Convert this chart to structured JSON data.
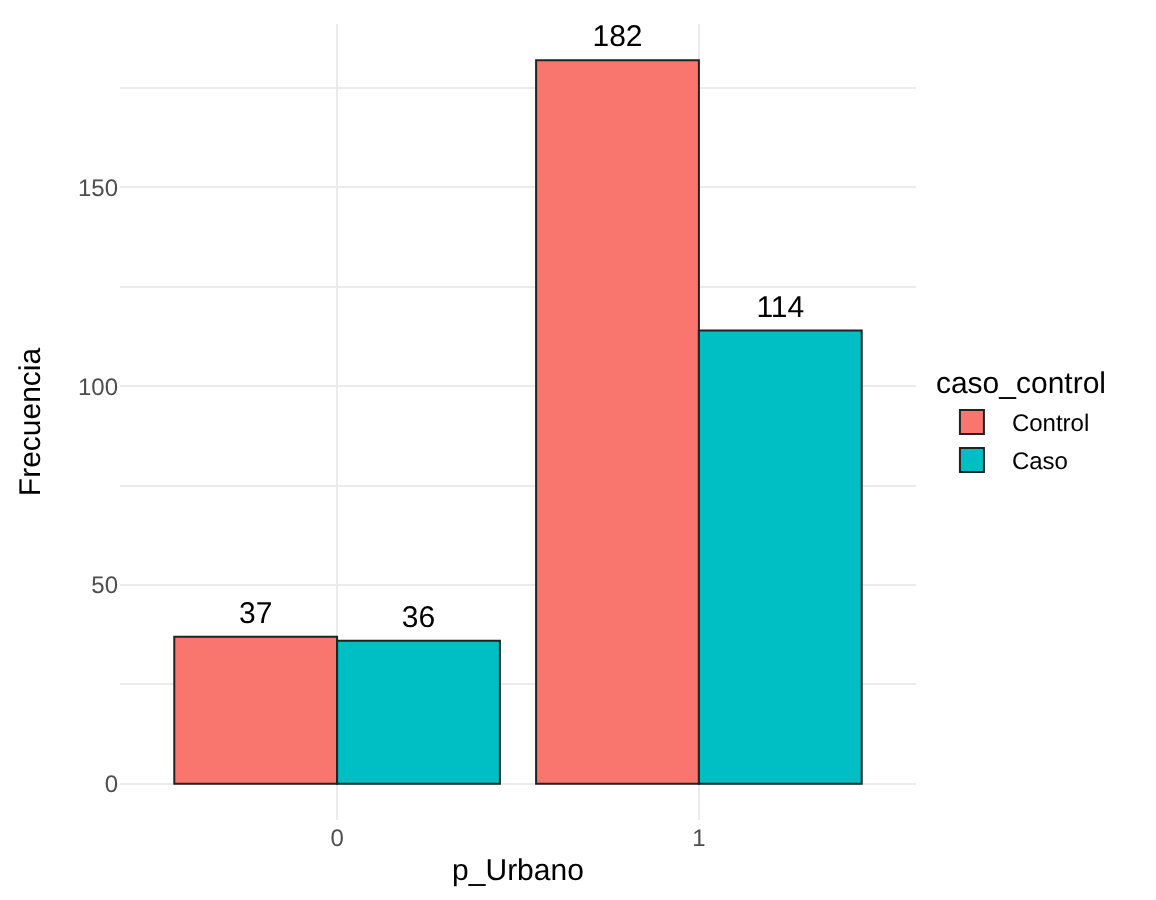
{
  "chart_data": {
    "type": "bar",
    "xlabel": "p_Urbano",
    "ylabel": "Frecuencia",
    "legend_title": "caso_control",
    "categories": [
      "0",
      "1"
    ],
    "series": [
      {
        "name": "Control",
        "color": "#f8766d",
        "values": [
          37,
          182
        ]
      },
      {
        "name": "Caso",
        "color": "#00bfc4",
        "values": [
          36,
          114
        ]
      }
    ],
    "ylim": [
      -9.1,
      191.1
    ],
    "yticks": [
      0,
      {
        "value": 25,
        "label": null
      },
      50,
      {
        "value": 75,
        "label": null
      },
      100,
      {
        "value": 125,
        "label": null
      },
      150,
      {
        "value": 175,
        "label": null
      }
    ],
    "grid": true,
    "legend": "right",
    "data_labels": true
  }
}
